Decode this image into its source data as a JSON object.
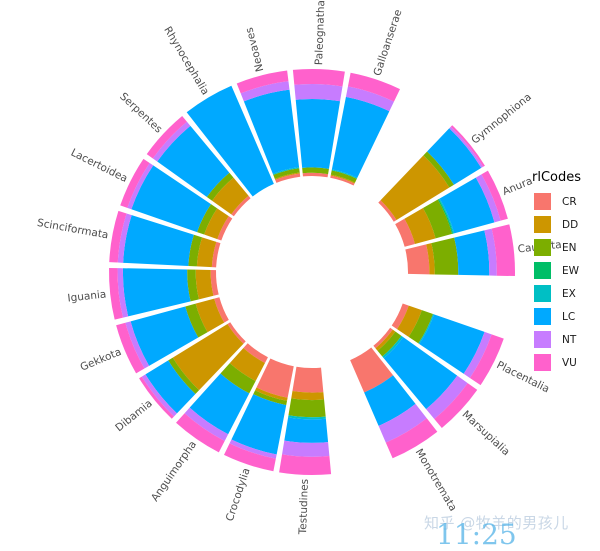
{
  "chart_data": {
    "type": "stacked-radial-bar",
    "legend": {
      "title": "rlCodes",
      "placement": "right",
      "items": [
        {
          "code": "CR",
          "color": "#F8766D"
        },
        {
          "code": "DD",
          "color": "#CD9600"
        },
        {
          "code": "EN",
          "color": "#7CAE00"
        },
        {
          "code": "EW",
          "color": "#00BE67"
        },
        {
          "code": "EX",
          "color": "#00BFC4"
        },
        {
          "code": "LC",
          "color": "#00A9FF"
        },
        {
          "code": "NT",
          "color": "#C77CFF"
        },
        {
          "code": "VU",
          "color": "#FF61CC"
        }
      ]
    },
    "categories": [
      {
        "name": "Neoaves",
        "stack": [
          [
            "CR",
            0.03
          ],
          [
            "DD",
            0.01
          ],
          [
            "EN",
            0.04
          ],
          [
            "EX",
            0.01
          ],
          [
            "LC",
            0.73
          ],
          [
            "NT",
            0.08
          ],
          [
            "VU",
            0.1
          ]
        ]
      },
      {
        "name": "Paleognathae",
        "stack": [
          [
            "CR",
            0.03
          ],
          [
            "EN",
            0.05
          ],
          [
            "LC",
            0.64
          ],
          [
            "NT",
            0.14
          ],
          [
            "VU",
            0.14
          ]
        ]
      },
      {
        "name": "Galloanserae",
        "stack": [
          [
            "CR",
            0.02
          ],
          [
            "DD",
            0.01
          ],
          [
            "EN",
            0.04
          ],
          [
            "EX",
            0.01
          ],
          [
            "LC",
            0.69
          ],
          [
            "NT",
            0.1
          ],
          [
            "VU",
            0.13
          ]
        ]
      },
      {
        "name": "Gymnophiona",
        "stack": [
          [
            "CR",
            0.03
          ],
          [
            "DD",
            0.58
          ],
          [
            "EN",
            0.05
          ],
          [
            "LC",
            0.3
          ],
          [
            "NT",
            0.02
          ],
          [
            "VU",
            0.02
          ]
        ]
      },
      {
        "name": "Anura",
        "stack": [
          [
            "CR",
            0.1
          ],
          [
            "DD",
            0.2
          ],
          [
            "EN",
            0.16
          ],
          [
            "EW",
            0.01
          ],
          [
            "EX",
            0.01
          ],
          [
            "LC",
            0.39
          ],
          [
            "NT",
            0.06
          ],
          [
            "VU",
            0.07
          ]
        ]
      },
      {
        "name": "Caudata",
        "stack": [
          [
            "CR",
            0.2
          ],
          [
            "DD",
            0.05
          ],
          [
            "EN",
            0.22
          ],
          [
            "LC",
            0.29
          ],
          [
            "NT",
            0.07
          ],
          [
            "VU",
            0.17
          ]
        ]
      },
      {
        "name": "Placentalia",
        "stack": [
          [
            "CR",
            0.06
          ],
          [
            "DD",
            0.13
          ],
          [
            "EN",
            0.11
          ],
          [
            "EX",
            0.01
          ],
          [
            "LC",
            0.5
          ],
          [
            "NT",
            0.07
          ],
          [
            "VU",
            0.12
          ]
        ]
      },
      {
        "name": "Marsupialia",
        "stack": [
          [
            "CR",
            0.03
          ],
          [
            "DD",
            0.03
          ],
          [
            "EN",
            0.07
          ],
          [
            "EX",
            0.02
          ],
          [
            "LC",
            0.62
          ],
          [
            "NT",
            0.12
          ],
          [
            "VU",
            0.11
          ]
        ]
      },
      {
        "name": "Monotremata",
        "stack": [
          [
            "CR",
            0.33
          ],
          [
            "LC",
            0.34
          ],
          [
            "NT",
            0.17
          ],
          [
            "VU",
            0.16
          ]
        ]
      },
      {
        "name": "Testudines",
        "stack": [
          [
            "CR",
            0.23
          ],
          [
            "DD",
            0.07
          ],
          [
            "EN",
            0.16
          ],
          [
            "EX",
            0.02
          ],
          [
            "LC",
            0.22
          ],
          [
            "NT",
            0.13
          ],
          [
            "VU",
            0.17
          ]
        ]
      },
      {
        "name": "Crocodylia",
        "stack": [
          [
            "CR",
            0.3
          ],
          [
            "DD",
            0.03
          ],
          [
            "EN",
            0.04
          ],
          [
            "LC",
            0.47
          ],
          [
            "NT",
            0.04
          ],
          [
            "VU",
            0.12
          ]
        ]
      },
      {
        "name": "Anguimorpha",
        "stack": [
          [
            "CR",
            0.06
          ],
          [
            "DD",
            0.19
          ],
          [
            "EN",
            0.13
          ],
          [
            "LC",
            0.43
          ],
          [
            "NT",
            0.07
          ],
          [
            "VU",
            0.12
          ]
        ]
      },
      {
        "name": "Dibamia",
        "stack": [
          [
            "CR",
            0.03
          ],
          [
            "DD",
            0.6
          ],
          [
            "EN",
            0.05
          ],
          [
            "LC",
            0.25
          ],
          [
            "NT",
            0.04
          ],
          [
            "VU",
            0.03
          ]
        ]
      },
      {
        "name": "Gekkota",
        "stack": [
          [
            "CR",
            0.05
          ],
          [
            "DD",
            0.18
          ],
          [
            "EN",
            0.1
          ],
          [
            "LC",
            0.53
          ],
          [
            "NT",
            0.05
          ],
          [
            "VU",
            0.09
          ]
        ]
      },
      {
        "name": "Iguania",
        "stack": [
          [
            "CR",
            0.05
          ],
          [
            "DD",
            0.14
          ],
          [
            "EN",
            0.08
          ],
          [
            "LC",
            0.6
          ],
          [
            "NT",
            0.05
          ],
          [
            "VU",
            0.08
          ]
        ]
      },
      {
        "name": "Scinciformata",
        "stack": [
          [
            "CR",
            0.04
          ],
          [
            "DD",
            0.14
          ],
          [
            "EN",
            0.08
          ],
          [
            "LC",
            0.61
          ],
          [
            "NT",
            0.05
          ],
          [
            "VU",
            0.08
          ]
        ]
      },
      {
        "name": "Lacertoidea",
        "stack": [
          [
            "CR",
            0.04
          ],
          [
            "DD",
            0.13
          ],
          [
            "EN",
            0.07
          ],
          [
            "LC",
            0.65
          ],
          [
            "NT",
            0.04
          ],
          [
            "VU",
            0.07
          ]
        ]
      },
      {
        "name": "Serpentes",
        "stack": [
          [
            "CR",
            0.03
          ],
          [
            "DD",
            0.22
          ],
          [
            "EN",
            0.06
          ],
          [
            "LC",
            0.57
          ],
          [
            "NT",
            0.05
          ],
          [
            "VU",
            0.07
          ]
        ]
      },
      {
        "name": "Rhynocephalia",
        "stack": [
          [
            "LC",
            1.0
          ]
        ]
      }
    ]
  },
  "overlay": {
    "watermark": "知乎 @牧羊的男孩儿",
    "clock": "11:25"
  }
}
